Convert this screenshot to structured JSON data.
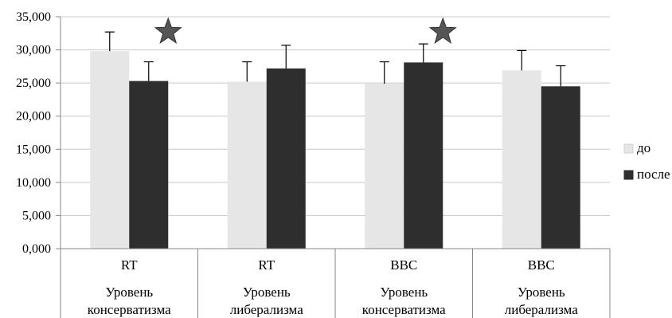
{
  "chart_data": {
    "type": "bar",
    "title": "",
    "xlabel": "",
    "ylabel": "",
    "ylim": [
      0,
      35000
    ],
    "yticks": [
      "0,000",
      "5,000",
      "10,000",
      "15,000",
      "20,000",
      "25,000",
      "30,000",
      "35,000"
    ],
    "ytick_values": [
      0,
      5000,
      10000,
      15000,
      20000,
      25000,
      30000,
      35000
    ],
    "grid": true,
    "legend_position": "right",
    "categories": [
      {
        "top": "RT",
        "bottom": [
          "Уровень",
          "консерватизма"
        ]
      },
      {
        "top": "RT",
        "bottom": [
          "Уровень",
          "либерализма"
        ]
      },
      {
        "top": "BBC",
        "bottom": [
          "Уровень",
          "консерватизма"
        ]
      },
      {
        "top": "BBC",
        "bottom": [
          "Уровень",
          "либерализма"
        ]
      }
    ],
    "series": [
      {
        "name": "до",
        "color": "#e6e6e6",
        "values": [
          29800,
          25200,
          24900,
          26900
        ],
        "errors": [
          2900,
          3000,
          3300,
          3000
        ]
      },
      {
        "name": "после",
        "color": "#2e2e2e",
        "values": [
          25300,
          27200,
          28100,
          24500
        ],
        "errors": [
          2900,
          3500,
          2800,
          3100
        ]
      }
    ],
    "annotations": [
      {
        "type": "star",
        "category": 0,
        "color": "#555555"
      },
      {
        "type": "star",
        "category": 2,
        "color": "#555555"
      }
    ]
  }
}
